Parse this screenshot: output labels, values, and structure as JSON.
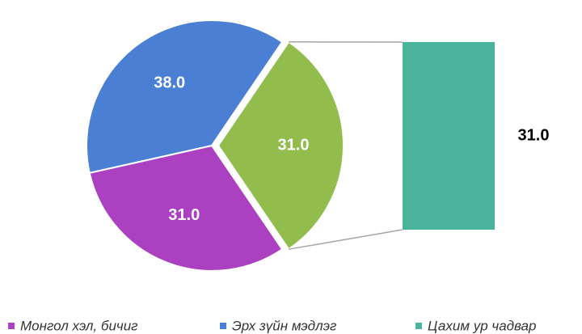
{
  "chart_data": {
    "type": "pie-of-bar",
    "categories": [
      "Монгол хэл, бичиг",
      "Эрх зүйн мэдлэг",
      "Цахим ур чадвар"
    ],
    "values": [
      31,
      38,
      31
    ],
    "value_labels": [
      "31.0",
      "38.0",
      "31.0"
    ],
    "colors": [
      "#ab40c0",
      "#4a7fd4",
      "#4ab49c"
    ],
    "other": {
      "value": 31,
      "value_label": "31.0",
      "color": "#92bc4c"
    }
  }
}
